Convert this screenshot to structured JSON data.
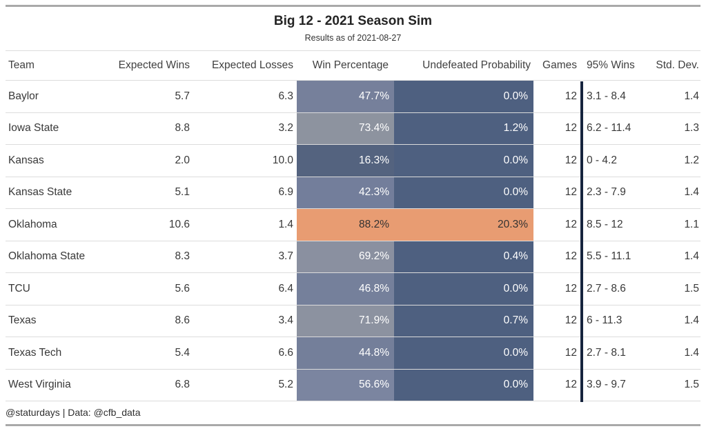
{
  "title": "Big 12 - 2021 Season Sim",
  "subtitle": "Results as of 2021-08-27",
  "footer": "@staturdays | Data: @cfb_data",
  "colors": {
    "dark_cell": "#4E6080",
    "highlight_orange": "#E89C72",
    "divider_navy": "#16243E",
    "frame_gray": "#A9A9A9"
  },
  "chart_data": {
    "type": "table",
    "title": "Big 12 - 2021 Season Sim",
    "subtitle": "Results as of 2021-08-27",
    "columns": [
      "Team",
      "Expected Wins",
      "Expected Losses",
      "Win Percentage",
      "Undefeated Probability",
      "Games",
      "95% Wins",
      "Std. Dev."
    ],
    "rows": [
      [
        "Baylor",
        5.7,
        6.3,
        "47.7%",
        "0.0%",
        12,
        "3.1 - 8.4",
        1.4
      ],
      [
        "Iowa State",
        8.8,
        3.2,
        "73.4%",
        "1.2%",
        12,
        "6.2 - 11.4",
        1.3
      ],
      [
        "Kansas",
        2.0,
        10.0,
        "16.3%",
        "0.0%",
        12,
        "0 - 4.2",
        1.2
      ],
      [
        "Kansas State",
        5.1,
        6.9,
        "42.3%",
        "0.0%",
        12,
        "2.3 - 7.9",
        1.4
      ],
      [
        "Oklahoma",
        10.6,
        1.4,
        "88.2%",
        "20.3%",
        12,
        "8.5 - 12",
        1.1
      ],
      [
        "Oklahoma State",
        8.3,
        3.7,
        "69.2%",
        "0.4%",
        12,
        "5.5 - 11.1",
        1.4
      ],
      [
        "TCU",
        5.6,
        6.4,
        "46.8%",
        "0.0%",
        12,
        "2.7 - 8.6",
        1.5
      ],
      [
        "Texas",
        8.6,
        3.4,
        "71.9%",
        "0.7%",
        12,
        "6 - 11.3",
        1.4
      ],
      [
        "Texas Tech",
        5.4,
        6.6,
        "44.8%",
        "0.0%",
        12,
        "2.7 - 8.1",
        1.4
      ],
      [
        "West Virginia",
        6.8,
        5.2,
        "56.6%",
        "0.0%",
        12,
        "3.9 - 9.7",
        1.5
      ]
    ]
  },
  "table": {
    "headers": [
      "Team",
      "Expected Wins",
      "Expected Losses",
      "Win Percentage",
      "Undefeated Probability",
      "Games",
      "95% Wins",
      "Std. Dev."
    ],
    "rows": [
      {
        "team": "Baylor",
        "expected_wins": "5.7",
        "expected_losses": "6.3",
        "win_percentage": "47.7%",
        "undefeated_probability": "0.0%",
        "games": "12",
        "wins_95": "3.1 - 8.4",
        "std_dev": "1.4",
        "win_pct_bg": "#76809B",
        "win_pct_fg": "#FFFFFF",
        "undef_bg": "#4E6080",
        "undef_fg": "#FFFFFF"
      },
      {
        "team": "Iowa State",
        "expected_wins": "8.8",
        "expected_losses": "3.2",
        "win_percentage": "73.4%",
        "undefeated_probability": "1.2%",
        "games": "12",
        "wins_95": "6.2 - 11.4",
        "std_dev": "1.3",
        "win_pct_bg": "#8D939F",
        "win_pct_fg": "#FFFFFF",
        "undef_bg": "#4E6080",
        "undef_fg": "#FFFFFF"
      },
      {
        "team": "Kansas",
        "expected_wins": "2.0",
        "expected_losses": "10.0",
        "win_percentage": "16.3%",
        "undefeated_probability": "0.0%",
        "games": "12",
        "wins_95": "0 - 4.2",
        "std_dev": "1.2",
        "win_pct_bg": "#54637F",
        "win_pct_fg": "#FFFFFF",
        "undef_bg": "#4E6080",
        "undef_fg": "#FFFFFF"
      },
      {
        "team": "Kansas State",
        "expected_wins": "5.1",
        "expected_losses": "6.9",
        "win_percentage": "42.3%",
        "undefeated_probability": "0.0%",
        "games": "12",
        "wins_95": "2.3 - 7.9",
        "std_dev": "1.4",
        "win_pct_bg": "#737E9B",
        "win_pct_fg": "#FFFFFF",
        "undef_bg": "#4E6080",
        "undef_fg": "#FFFFFF"
      },
      {
        "team": "Oklahoma",
        "expected_wins": "10.6",
        "expected_losses": "1.4",
        "win_percentage": "88.2%",
        "undefeated_probability": "20.3%",
        "games": "12",
        "wins_95": "8.5 - 12",
        "std_dev": "1.1",
        "win_pct_bg": "#E89C72",
        "win_pct_fg": "#323232",
        "undef_bg": "#E89C72",
        "undef_fg": "#323232"
      },
      {
        "team": "Oklahoma State",
        "expected_wins": "8.3",
        "expected_losses": "3.7",
        "win_percentage": "69.2%",
        "undefeated_probability": "0.4%",
        "games": "12",
        "wins_95": "5.5 - 11.1",
        "std_dev": "1.4",
        "win_pct_bg": "#8A90A0",
        "win_pct_fg": "#FFFFFF",
        "undef_bg": "#4E6080",
        "undef_fg": "#FFFFFF"
      },
      {
        "team": "TCU",
        "expected_wins": "5.6",
        "expected_losses": "6.4",
        "win_percentage": "46.8%",
        "undefeated_probability": "0.0%",
        "games": "12",
        "wins_95": "2.7 - 8.6",
        "std_dev": "1.5",
        "win_pct_bg": "#75809B",
        "win_pct_fg": "#FFFFFF",
        "undef_bg": "#4E6080",
        "undef_fg": "#FFFFFF"
      },
      {
        "team": "Texas",
        "expected_wins": "8.6",
        "expected_losses": "3.4",
        "win_percentage": "71.9%",
        "undefeated_probability": "0.7%",
        "games": "12",
        "wins_95": "6 - 11.3",
        "std_dev": "1.4",
        "win_pct_bg": "#8C92A0",
        "win_pct_fg": "#FFFFFF",
        "undef_bg": "#4E6080",
        "undef_fg": "#FFFFFF"
      },
      {
        "team": "Texas Tech",
        "expected_wins": "5.4",
        "expected_losses": "6.6",
        "win_percentage": "44.8%",
        "undefeated_probability": "0.0%",
        "games": "12",
        "wins_95": "2.7 - 8.1",
        "std_dev": "1.4",
        "win_pct_bg": "#747F9A",
        "win_pct_fg": "#FFFFFF",
        "undef_bg": "#4E6080",
        "undef_fg": "#FFFFFF"
      },
      {
        "team": "West Virginia",
        "expected_wins": "6.8",
        "expected_losses": "5.2",
        "win_percentage": "56.6%",
        "undefeated_probability": "0.0%",
        "games": "12",
        "wins_95": "3.9 - 9.7",
        "std_dev": "1.5",
        "win_pct_bg": "#7B85A0",
        "win_pct_fg": "#FFFFFF",
        "undef_bg": "#4E6080",
        "undef_fg": "#FFFFFF"
      }
    ]
  }
}
